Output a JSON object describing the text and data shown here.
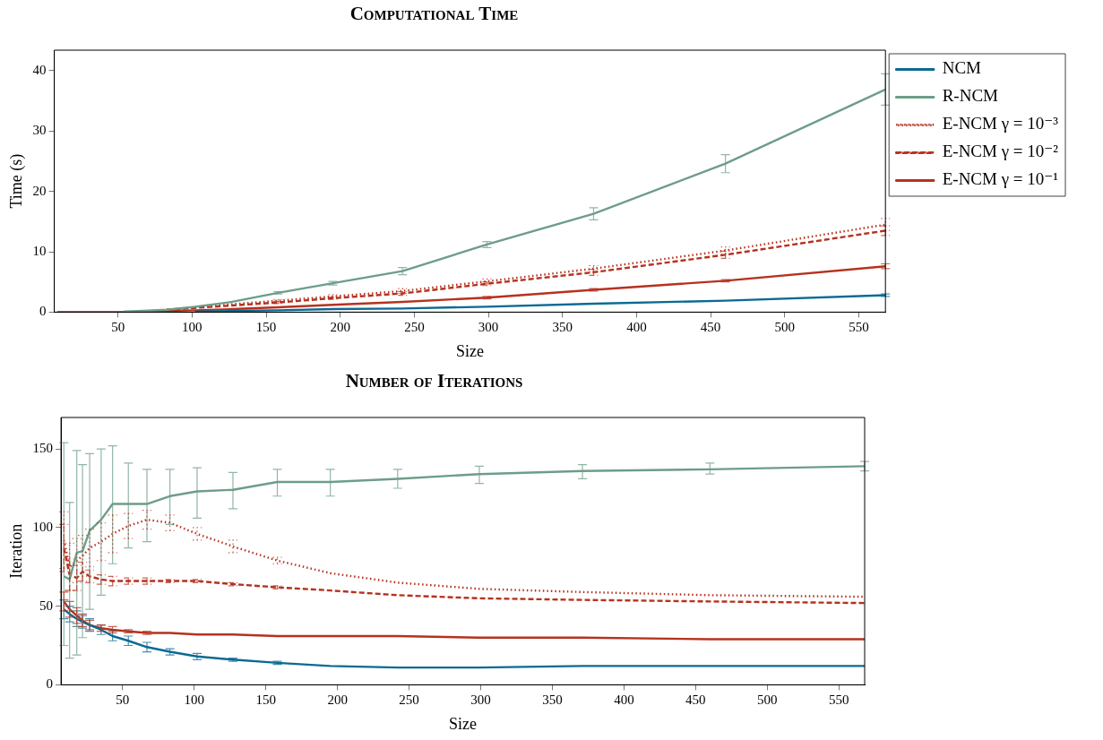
{
  "chart_data": [
    {
      "type": "line",
      "title": "Computational Time",
      "xlabel": "Size",
      "ylabel": "Time (s)",
      "legend": "top right",
      "xlim": [
        7,
        568
      ],
      "ylim": [
        0,
        43.4
      ],
      "xticks": [
        50,
        100,
        150,
        200,
        250,
        300,
        350,
        400,
        450,
        500,
        550
      ],
      "yticks": [
        0,
        10,
        20,
        30,
        40
      ],
      "x": [
        9,
        13,
        18,
        22,
        27,
        35,
        43,
        54,
        67,
        83,
        102,
        127,
        158,
        195,
        242,
        299,
        371,
        460,
        568
      ],
      "series": [
        {
          "name": "NCM",
          "color": "#0b6a93",
          "line_style": "solid",
          "values": [
            null,
            null,
            null,
            null,
            null,
            null,
            null,
            null,
            null,
            null,
            0.1,
            0.2,
            0.3,
            0.5,
            0.6,
            0.9,
            1.4,
            1.9,
            2.8
          ],
          "errors": [
            null,
            null,
            null,
            null,
            null,
            null,
            null,
            null,
            null,
            null,
            null,
            null,
            null,
            null,
            null,
            null,
            null,
            null,
            0.2
          ]
        },
        {
          "name": "R-NCM",
          "color": "#6d9d88",
          "line_style": "solid",
          "values": [
            null,
            null,
            null,
            null,
            null,
            null,
            null,
            0.1,
            0.2,
            0.4,
            0.9,
            1.7,
            3.2,
            4.8,
            6.8,
            11.2,
            16.3,
            24.6,
            36.9
          ],
          "errors": [
            null,
            null,
            null,
            null,
            null,
            null,
            null,
            null,
            null,
            null,
            null,
            null,
            0.2,
            0.3,
            0.6,
            0.5,
            1.0,
            1.5,
            2.6
          ]
        },
        {
          "name": "E-NCM γ = 10⁻³",
          "color": "#b5321f",
          "line_style": "dotted",
          "values": [
            null,
            null,
            null,
            null,
            null,
            null,
            null,
            null,
            null,
            0.4,
            0.8,
            1.3,
            1.9,
            2.6,
            3.5,
            5.1,
            7.2,
            10.2,
            14.5
          ],
          "errors": [
            null,
            null,
            null,
            null,
            null,
            null,
            null,
            null,
            null,
            null,
            null,
            null,
            0.2,
            0.3,
            0.4,
            0.4,
            0.5,
            0.6,
            1.0
          ]
        },
        {
          "name": "E-NCM γ = 10⁻²",
          "color": "#b5321f",
          "line_style": "dashed",
          "values": [
            null,
            null,
            null,
            null,
            null,
            null,
            null,
            null,
            null,
            0.4,
            0.7,
            1.1,
            1.6,
            2.3,
            3.1,
            4.7,
            6.6,
            9.5,
            13.5
          ],
          "errors": [
            null,
            null,
            null,
            null,
            null,
            null,
            null,
            null,
            null,
            null,
            null,
            null,
            0.2,
            0.2,
            0.3,
            0.3,
            0.5,
            0.6,
            0.8
          ]
        },
        {
          "name": "E-NCM γ = 10⁻¹",
          "color": "#b5321f",
          "line_style": "solid",
          "values": [
            0,
            0,
            0,
            0,
            0,
            0,
            0,
            0,
            0,
            0.2,
            0.3,
            0.5,
            0.8,
            1.2,
            1.7,
            2.4,
            3.7,
            5.2,
            7.6
          ],
          "errors": [
            null,
            null,
            null,
            null,
            null,
            null,
            null,
            null,
            null,
            null,
            null,
            null,
            null,
            null,
            null,
            0.2,
            0.2,
            0.2,
            0.4
          ]
        }
      ]
    },
    {
      "type": "line",
      "title": "Number of Iterations",
      "xlabel": "Size",
      "ylabel": "Iteration",
      "xlim": [
        7,
        568
      ],
      "ylim": [
        0,
        170
      ],
      "xticks": [
        50,
        100,
        150,
        200,
        250,
        300,
        350,
        400,
        450,
        500,
        550
      ],
      "yticks": [
        0,
        50,
        100,
        150
      ],
      "x": [
        9,
        13,
        18,
        22,
        27,
        35,
        43,
        54,
        67,
        83,
        102,
        127,
        158,
        195,
        242,
        299,
        371,
        460,
        568
      ],
      "series": [
        {
          "color": "#0b6a93",
          "line_style": "solid",
          "values": [
            48,
            45,
            42,
            40,
            38,
            35,
            31,
            28,
            24,
            21,
            18,
            16,
            14,
            12,
            11,
            11,
            12,
            12,
            12
          ],
          "errors": [
            6,
            5,
            5,
            4,
            4,
            3,
            3,
            3,
            3,
            2,
            2,
            1,
            1,
            null,
            null,
            null,
            null,
            null,
            null
          ]
        },
        {
          "color": "#6d9d88",
          "line_style": "solid",
          "values": [
            69,
            67,
            84,
            85,
            98,
            105,
            115,
            115,
            115,
            120,
            123,
            124,
            129,
            129,
            131,
            134,
            136,
            137,
            139
          ],
          "errors": [
            [
              25,
              154
            ],
            [
              17,
              116
            ],
            [
              19,
              149
            ],
            [
              30,
              140
            ],
            [
              48,
              147
            ],
            [
              57,
              150
            ],
            [
              77,
              152
            ],
            [
              87,
              141
            ],
            [
              91,
              137
            ],
            [
              102,
              137
            ],
            [
              106,
              138
            ],
            [
              112,
              135
            ],
            [
              120,
              137
            ],
            [
              120,
              137
            ],
            [
              125,
              137
            ],
            [
              128,
              139
            ],
            [
              131,
              140
            ],
            [
              134,
              141
            ],
            [
              136,
              142
            ]
          ]
        },
        {
          "color": "#b5321f",
          "line_style": "dotted",
          "values": [
            92,
            75,
            79,
            82,
            87,
            91,
            96,
            101,
            105,
            103,
            96,
            88,
            79,
            71,
            65,
            61,
            59,
            57,
            56
          ],
          "errors": [
            18,
            15,
            14,
            13,
            12,
            12,
            12,
            8,
            6,
            5,
            4,
            4,
            2,
            null,
            null,
            null,
            null,
            null,
            null
          ]
        },
        {
          "color": "#b5321f",
          "line_style": "dashed",
          "values": [
            87,
            70,
            68,
            72,
            69,
            67,
            66,
            66,
            66,
            66,
            66,
            64,
            62,
            60,
            57,
            55,
            54,
            53,
            52
          ],
          "errors": [
            15,
            10,
            8,
            6,
            4,
            3,
            3,
            2,
            2,
            1,
            1,
            1,
            1,
            null,
            null,
            null,
            null,
            null,
            null
          ]
        },
        {
          "color": "#b5321f",
          "line_style": "solid",
          "values": [
            53,
            48,
            44,
            41,
            38,
            36,
            35,
            34,
            33,
            33,
            32,
            32,
            31,
            31,
            31,
            30,
            30,
            29,
            29
          ],
          "errors": [
            6,
            5,
            5,
            4,
            3,
            2,
            2,
            1,
            1,
            null,
            null,
            null,
            null,
            null,
            null,
            null,
            null,
            null,
            null
          ]
        }
      ]
    }
  ]
}
